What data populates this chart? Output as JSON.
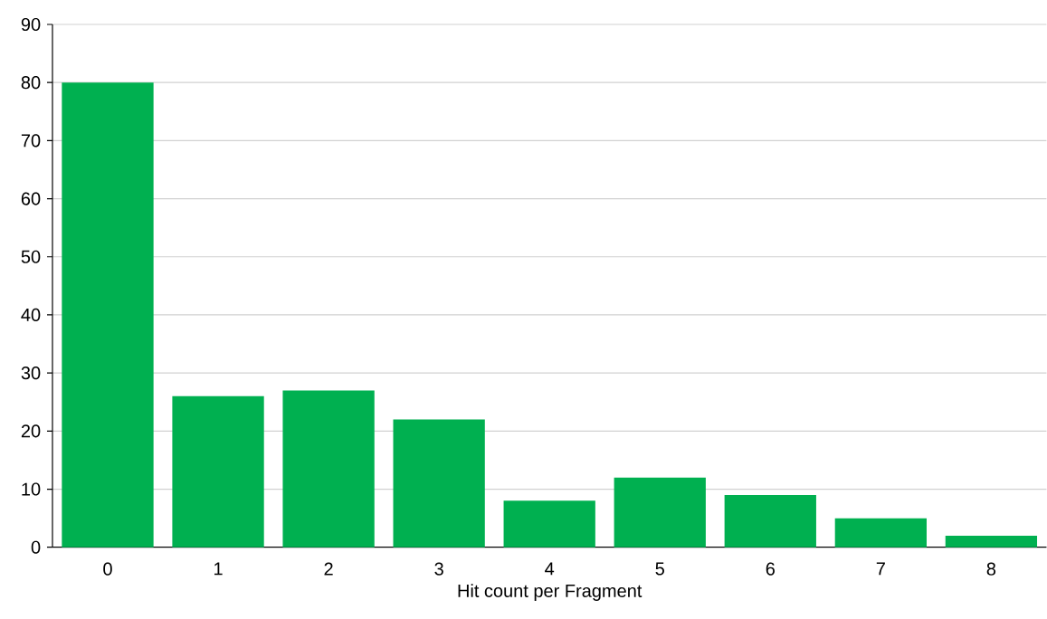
{
  "chart_data": {
    "type": "bar",
    "xlabel": "Hit count per Fragment",
    "categories": [
      "0",
      "1",
      "2",
      "3",
      "4",
      "5",
      "6",
      "7",
      "8"
    ],
    "values": [
      80,
      26,
      27,
      22,
      8,
      12,
      9,
      5,
      2
    ],
    "color": "#00b050",
    "ylim": [
      0,
      90
    ],
    "yticks": [
      0,
      10,
      20,
      30,
      40,
      50,
      60,
      70,
      80,
      90
    ],
    "grid": "y"
  }
}
